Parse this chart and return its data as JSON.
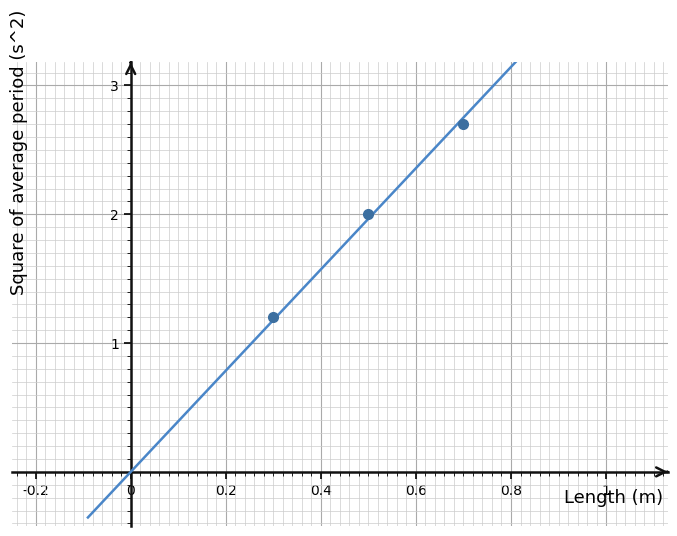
{
  "data_points_x": [
    0.3,
    0.5,
    0.7
  ],
  "data_points_y": [
    1.2,
    2.0,
    2.7
  ],
  "slope": 3.93,
  "intercept": 0.0,
  "line_x_start": -0.09,
  "line_x_end": 1.09,
  "xlim": [
    -0.25,
    1.13
  ],
  "ylim": [
    -0.42,
    3.18
  ],
  "xlabel": "Length (m)",
  "ylabel": "Square of average period (s^2)",
  "xticks": [
    -0.2,
    0.0,
    0.2,
    0.4,
    0.6,
    0.8,
    1.0
  ],
  "yticks": [
    1,
    2,
    3
  ],
  "xtick_labels": [
    "-0.2",
    "0",
    "0.2",
    "0.4",
    "0.6",
    "0.8",
    "1"
  ],
  "ytick_labels": [
    "1",
    "2",
    "3"
  ],
  "line_color": "#4a86c8",
  "point_color": "#3c6fa0",
  "grid_minor_color": "#cccccc",
  "grid_major_color": "#aaaaaa",
  "background_color": "#ffffff",
  "axis_color": "#111111",
  "point_size": 7,
  "line_width": 1.8,
  "font_size_labels": 13,
  "font_size_ticks": 11
}
